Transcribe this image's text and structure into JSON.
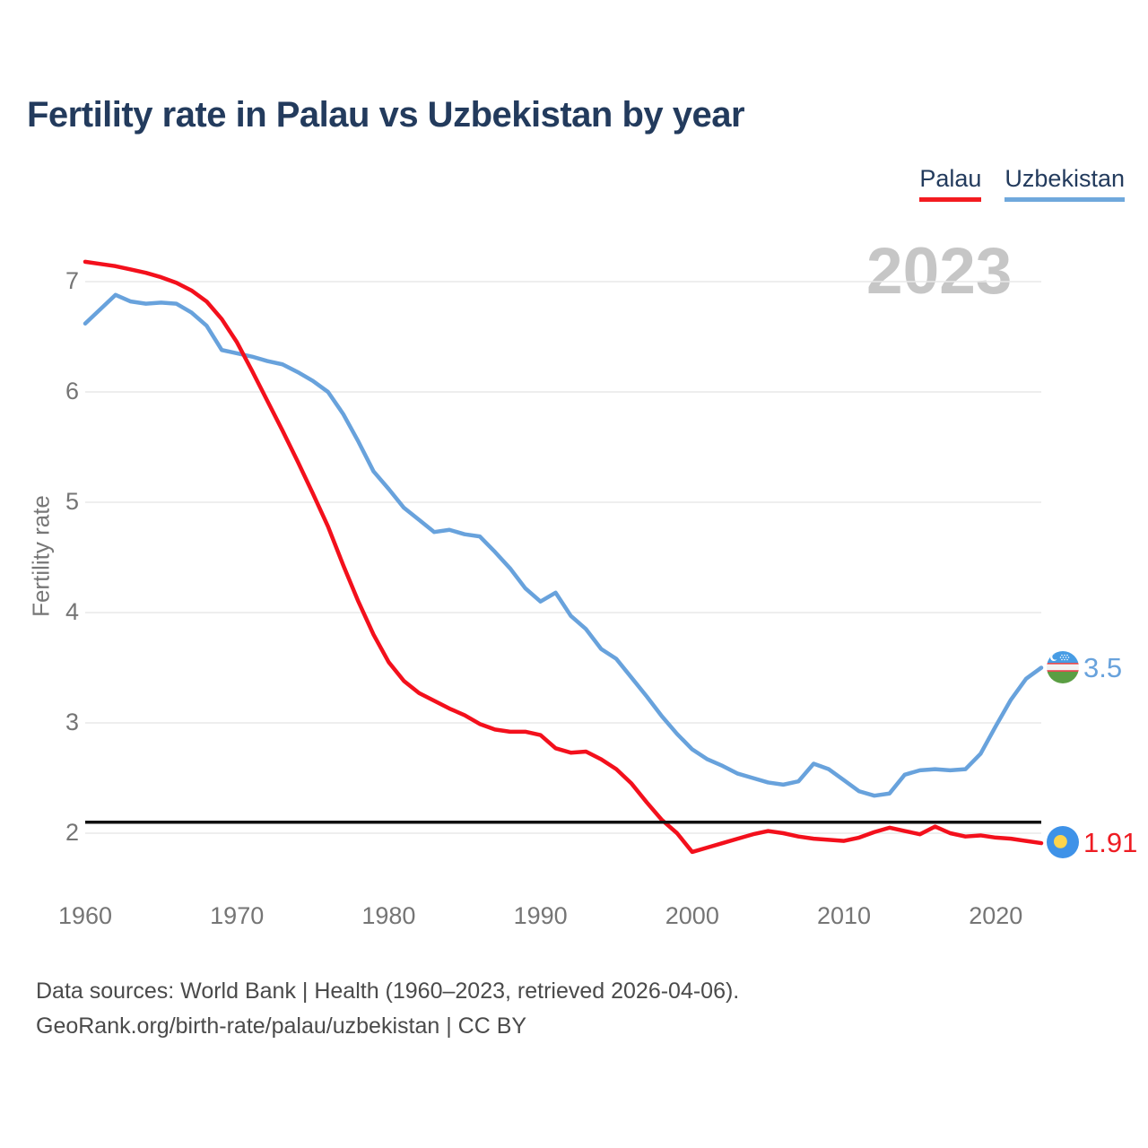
{
  "title": "Fertility rate in Palau vs Uzbekistan by year",
  "watermark": "2023",
  "ylabel": "Fertility rate",
  "legend": {
    "palau_label": "Palau",
    "uzbekistan_label": "Uzbekistan"
  },
  "footer": {
    "line1": "Data sources: World Bank | Health (1960–2023, retrieved 2026-04-06).",
    "line2": "GeoRank.org/birth-rate/palau/uzbekistan | CC BY"
  },
  "colors": {
    "palau_line": "#f3101c",
    "uzbekistan_line": "#68a2dc",
    "reference_line": "#111111",
    "grid": "#e8e8e8",
    "title_text": "#233b5d",
    "tick_text": "#757575",
    "watermark_text": "#c6c6c6"
  },
  "chart_data": {
    "type": "line",
    "title": "Fertility rate in Palau vs Uzbekistan by year",
    "xlabel": "",
    "ylabel": "Fertility rate",
    "grid": true,
    "legend_position": "top-right",
    "xlim": [
      1960,
      2023
    ],
    "ylim": [
      1.7,
      7.3
    ],
    "xticks": [
      1960,
      1970,
      1980,
      1990,
      2000,
      2010,
      2020
    ],
    "yticks": [
      2,
      3,
      4,
      5,
      6,
      7
    ],
    "reference_line": {
      "value": 2.1,
      "color": "#111111"
    },
    "annotation_year": "2023",
    "years": [
      1960,
      1961,
      1962,
      1963,
      1964,
      1965,
      1966,
      1967,
      1968,
      1969,
      1970,
      1971,
      1972,
      1973,
      1974,
      1975,
      1976,
      1977,
      1978,
      1979,
      1980,
      1981,
      1982,
      1983,
      1984,
      1985,
      1986,
      1987,
      1988,
      1989,
      1990,
      1991,
      1992,
      1993,
      1994,
      1995,
      1996,
      1997,
      1998,
      1999,
      2000,
      2001,
      2002,
      2003,
      2004,
      2005,
      2006,
      2007,
      2008,
      2009,
      2010,
      2011,
      2012,
      2013,
      2014,
      2015,
      2016,
      2017,
      2018,
      2019,
      2020,
      2021,
      2022,
      2023
    ],
    "series": [
      {
        "name": "Palau",
        "color": "#f3101c",
        "end_label": "1.91",
        "values": [
          7.18,
          7.16,
          7.14,
          7.11,
          7.08,
          7.04,
          6.99,
          6.92,
          6.82,
          6.66,
          6.45,
          6.19,
          5.92,
          5.65,
          5.37,
          5.08,
          4.78,
          4.43,
          4.1,
          3.8,
          3.55,
          3.38,
          3.27,
          3.2,
          3.13,
          3.07,
          2.99,
          2.94,
          2.92,
          2.92,
          2.89,
          2.77,
          2.73,
          2.74,
          2.67,
          2.58,
          2.45,
          2.28,
          2.12,
          2.0,
          1.83,
          1.87,
          1.91,
          1.95,
          1.99,
          2.02,
          2.0,
          1.97,
          1.95,
          1.94,
          1.93,
          1.96,
          2.01,
          2.05,
          2.02,
          1.99,
          2.06,
          2.0,
          1.97,
          1.98,
          1.96,
          1.95,
          1.93,
          1.91
        ]
      },
      {
        "name": "Uzbekistan",
        "color": "#68a2dc",
        "end_label": "3.5",
        "values": [
          6.62,
          6.75,
          6.88,
          6.82,
          6.8,
          6.81,
          6.8,
          6.72,
          6.6,
          6.38,
          6.35,
          6.32,
          6.28,
          6.25,
          6.18,
          6.1,
          6.0,
          5.8,
          5.55,
          5.28,
          5.12,
          4.95,
          4.84,
          4.73,
          4.75,
          4.71,
          4.69,
          4.55,
          4.4,
          4.22,
          4.1,
          4.18,
          3.97,
          3.85,
          3.67,
          3.58,
          3.41,
          3.24,
          3.06,
          2.9,
          2.76,
          2.67,
          2.61,
          2.54,
          2.5,
          2.46,
          2.44,
          2.47,
          2.63,
          2.58,
          2.48,
          2.38,
          2.34,
          2.36,
          2.53,
          2.57,
          2.58,
          2.57,
          2.58,
          2.72,
          2.97,
          3.21,
          3.4,
          3.5
        ]
      }
    ],
    "end_labels": {
      "palau": "1.91",
      "uzbekistan": "3.5"
    }
  }
}
